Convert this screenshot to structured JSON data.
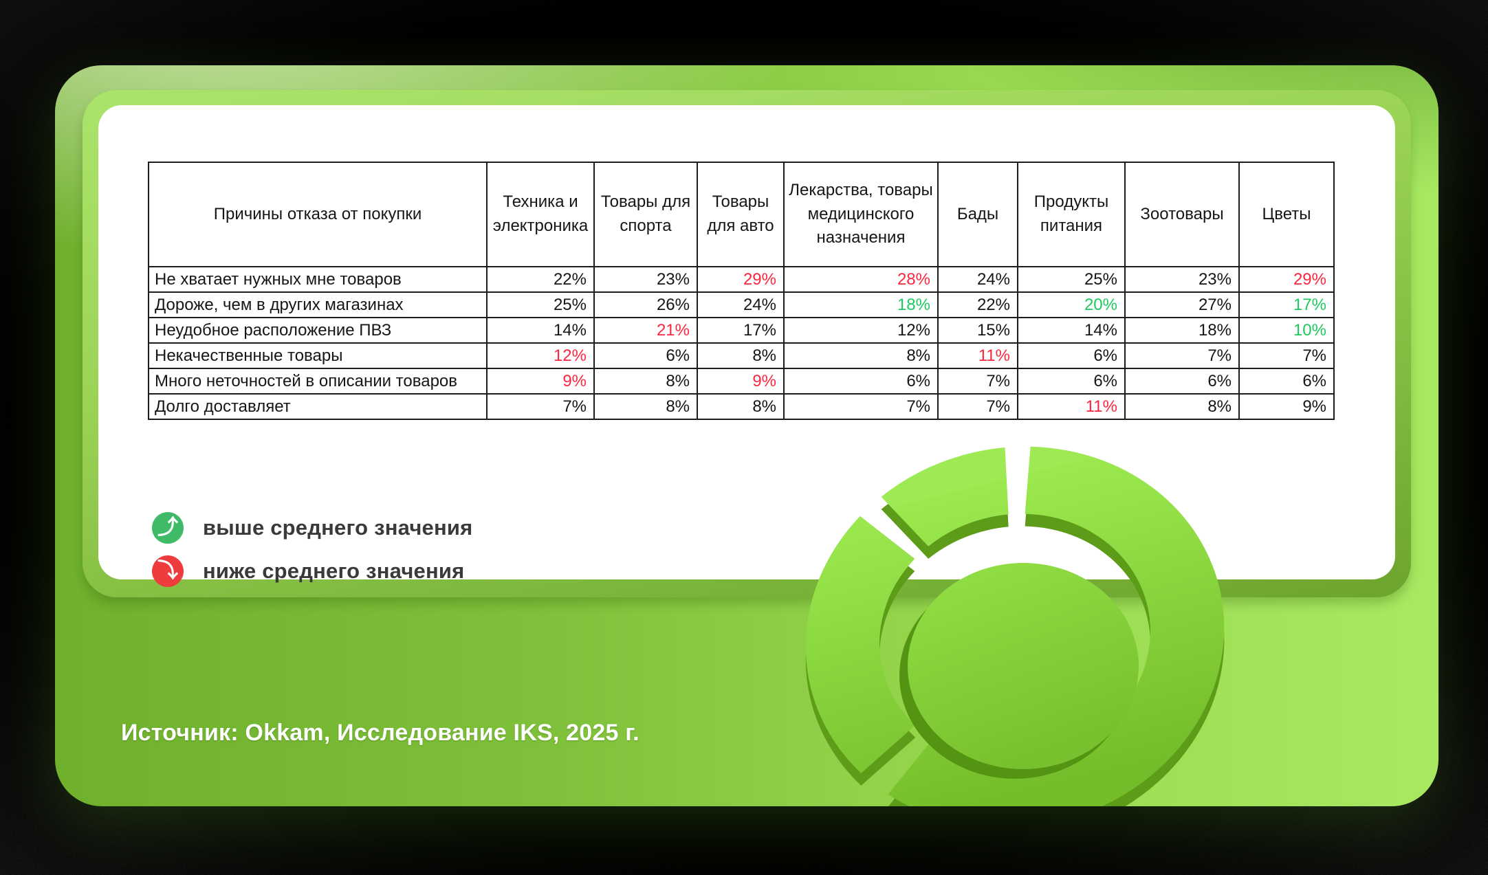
{
  "table": {
    "header_label": "Причины отказа от покупки",
    "columns": [
      "Техника и электроника",
      "Товары для спорта",
      "Товары для авто",
      "Лекарства, товары медицинского назначения",
      "Бады",
      "Продукты питания",
      "Зоотовары",
      "Цветы"
    ],
    "rows": [
      {
        "label": "Не хватает нужных мне товаров",
        "values": [
          {
            "v": "22%",
            "c": "k"
          },
          {
            "v": "23%",
            "c": "k"
          },
          {
            "v": "29%",
            "c": "r"
          },
          {
            "v": "28%",
            "c": "r"
          },
          {
            "v": "24%",
            "c": "k"
          },
          {
            "v": "25%",
            "c": "k"
          },
          {
            "v": "23%",
            "c": "k"
          },
          {
            "v": "29%",
            "c": "r"
          }
        ]
      },
      {
        "label": "Дороже, чем в других магазинах",
        "values": [
          {
            "v": "25%",
            "c": "k"
          },
          {
            "v": "26%",
            "c": "k"
          },
          {
            "v": "24%",
            "c": "k"
          },
          {
            "v": "18%",
            "c": "g"
          },
          {
            "v": "22%",
            "c": "k"
          },
          {
            "v": "20%",
            "c": "g"
          },
          {
            "v": "27%",
            "c": "k"
          },
          {
            "v": "17%",
            "c": "g"
          }
        ]
      },
      {
        "label": "Неудобное расположение ПВЗ",
        "values": [
          {
            "v": "14%",
            "c": "k"
          },
          {
            "v": "21%",
            "c": "r"
          },
          {
            "v": "17%",
            "c": "k"
          },
          {
            "v": "12%",
            "c": "k"
          },
          {
            "v": "15%",
            "c": "k"
          },
          {
            "v": "14%",
            "c": "k"
          },
          {
            "v": "18%",
            "c": "k"
          },
          {
            "v": "10%",
            "c": "g"
          }
        ]
      },
      {
        "label": "Некачественные товары",
        "values": [
          {
            "v": "12%",
            "c": "r"
          },
          {
            "v": "6%",
            "c": "k"
          },
          {
            "v": "8%",
            "c": "k"
          },
          {
            "v": "8%",
            "c": "k"
          },
          {
            "v": "11%",
            "c": "r"
          },
          {
            "v": "6%",
            "c": "k"
          },
          {
            "v": "7%",
            "c": "k"
          },
          {
            "v": "7%",
            "c": "k"
          }
        ]
      },
      {
        "label": "Много неточностей в описании товаров",
        "values": [
          {
            "v": "9%",
            "c": "r"
          },
          {
            "v": "8%",
            "c": "k"
          },
          {
            "v": "9%",
            "c": "r"
          },
          {
            "v": "6%",
            "c": "k"
          },
          {
            "v": "7%",
            "c": "k"
          },
          {
            "v": "6%",
            "c": "k"
          },
          {
            "v": "6%",
            "c": "k"
          },
          {
            "v": "6%",
            "c": "k"
          }
        ]
      },
      {
        "label": "Долго доставляет",
        "values": [
          {
            "v": "7%",
            "c": "k"
          },
          {
            "v": "8%",
            "c": "k"
          },
          {
            "v": "8%",
            "c": "k"
          },
          {
            "v": "7%",
            "c": "k"
          },
          {
            "v": "7%",
            "c": "k"
          },
          {
            "v": "11%",
            "c": "r"
          },
          {
            "v": "8%",
            "c": "k"
          },
          {
            "v": "9%",
            "c": "k"
          }
        ]
      }
    ]
  },
  "legend": [
    {
      "icon": "up-arrow",
      "label": "выше среднего значения"
    },
    {
      "icon": "down-arrow",
      "label": "ниже среднего значения"
    }
  ],
  "source": "Источник: Okkam, Исследование IKS, 2025 г.",
  "colors": {
    "value_red": "#fa2640",
    "value_green": "#1fc95f",
    "value_black": "#161616",
    "legend_up_bg": "#3fbb67",
    "legend_down_bg": "#ed3b3e"
  },
  "chart_data": {
    "type": "table",
    "title": "Причины отказа от покупки",
    "categories": [
      "Техника и электроника",
      "Товары для спорта",
      "Товары для авто",
      "Лекарства, товары медицинского назначения",
      "Бады",
      "Продукты питания",
      "Зоотовары",
      "Цветы"
    ],
    "series": [
      {
        "name": "Не хватает нужных мне товаров",
        "values": [
          22,
          23,
          29,
          28,
          24,
          25,
          23,
          29
        ]
      },
      {
        "name": "Дороже, чем в других магазинах",
        "values": [
          25,
          26,
          24,
          18,
          22,
          20,
          27,
          17
        ]
      },
      {
        "name": "Неудобное расположение ПВЗ",
        "values": [
          14,
          21,
          17,
          12,
          15,
          14,
          18,
          10
        ]
      },
      {
        "name": "Некачественные товары",
        "values": [
          12,
          6,
          8,
          8,
          11,
          6,
          7,
          7
        ]
      },
      {
        "name": "Много неточностей в описании товаров",
        "values": [
          9,
          8,
          9,
          6,
          7,
          6,
          6,
          6
        ]
      },
      {
        "name": "Долго доставляет",
        "values": [
          7,
          8,
          8,
          7,
          7,
          11,
          8,
          9
        ]
      }
    ],
    "unit": "%",
    "highlight_red_above_average": [
      [
        0,
        2
      ],
      [
        0,
        3
      ],
      [
        0,
        7
      ],
      [
        2,
        1
      ],
      [
        3,
        0
      ],
      [
        3,
        4
      ],
      [
        4,
        0
      ],
      [
        4,
        2
      ],
      [
        5,
        5
      ]
    ],
    "highlight_green_below_average": [
      [
        1,
        3
      ],
      [
        1,
        5
      ],
      [
        1,
        7
      ],
      [
        2,
        7
      ]
    ]
  }
}
